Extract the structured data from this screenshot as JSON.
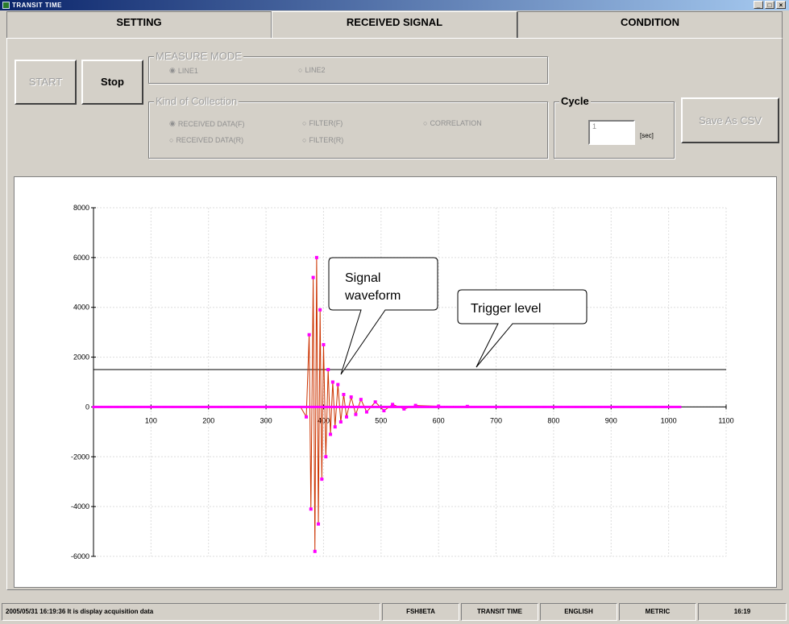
{
  "window": {
    "title": "TRANSIT TIME",
    "controls": [
      "_",
      "□",
      "×"
    ]
  },
  "tabs": [
    {
      "label": "SETTING",
      "active": false
    },
    {
      "label": "RECEIVED SIGNAL",
      "active": true
    },
    {
      "label": "CONDITION",
      "active": false
    }
  ],
  "controls": {
    "start_label": "START",
    "stop_label": "Stop",
    "measure_mode": {
      "label": "MEASURE MODE",
      "options": [
        {
          "label": "LINE1",
          "selected": true
        },
        {
          "label": "LINE2",
          "selected": false
        }
      ]
    },
    "collection": {
      "label": "Kind of Collection",
      "options": [
        {
          "label": "RECEIVED DATA(F)",
          "selected": true
        },
        {
          "label": "FILTER(F)",
          "selected": false
        },
        {
          "label": "CORRELATION",
          "selected": false
        },
        {
          "label": "RECEIVED DATA(R)",
          "selected": false
        },
        {
          "label": "FILTER(R)",
          "selected": false
        }
      ]
    },
    "cycle": {
      "label": "Cycle",
      "value": "1",
      "unit": "[sec]"
    },
    "save_csv_label": "Save As CSV"
  },
  "callouts": {
    "signal_line1": "Signal",
    "signal_line2": "waveform",
    "trigger": "Trigger level"
  },
  "chart_data": {
    "type": "line",
    "xlim": [
      0,
      1100
    ],
    "ylim": [
      -6000,
      8000
    ],
    "x_ticks": [
      100,
      200,
      300,
      400,
      500,
      600,
      700,
      800,
      900,
      1000,
      1100
    ],
    "y_ticks": [
      -6000,
      -4000,
      -2000,
      0,
      2000,
      4000,
      6000,
      8000
    ],
    "grid": true,
    "trigger_level": 1500,
    "series": [
      {
        "color": "#ff00ff",
        "line_color": "#cc3300",
        "points": [
          [
            0,
            0
          ],
          [
            360,
            0
          ],
          [
            370,
            -400
          ],
          [
            375,
            2900
          ],
          [
            378,
            -4100
          ],
          [
            382,
            5200
          ],
          [
            385,
            -5800
          ],
          [
            388,
            6000
          ],
          [
            391,
            -4700
          ],
          [
            394,
            3900
          ],
          [
            397,
            -2900
          ],
          [
            400,
            2500
          ],
          [
            404,
            -2000
          ],
          [
            408,
            1500
          ],
          [
            412,
            -1100
          ],
          [
            416,
            1000
          ],
          [
            420,
            -800
          ],
          [
            425,
            900
          ],
          [
            430,
            -600
          ],
          [
            435,
            500
          ],
          [
            440,
            -400
          ],
          [
            448,
            400
          ],
          [
            456,
            -300
          ],
          [
            465,
            300
          ],
          [
            475,
            -200
          ],
          [
            490,
            200
          ],
          [
            505,
            -150
          ],
          [
            520,
            100
          ],
          [
            540,
            -80
          ],
          [
            560,
            60
          ],
          [
            600,
            30
          ],
          [
            650,
            20
          ],
          [
            700,
            0
          ],
          [
            1020,
            0
          ]
        ]
      }
    ]
  },
  "status_bar": {
    "message": "2005/05/31 16:19:36 It is display acquisition data",
    "model": "FSH8ETA",
    "mode": "TRANSIT TIME",
    "language": "ENGLISH",
    "units": "METRIC",
    "time": "16:19"
  }
}
